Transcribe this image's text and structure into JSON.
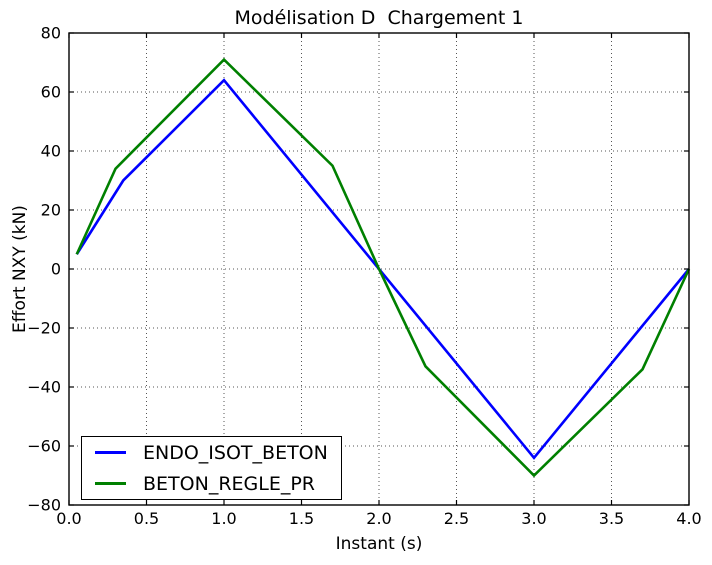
{
  "chart_data": {
    "type": "line",
    "title": "Modélisation D  Chargement 1",
    "xlabel": "Instant (s)",
    "ylabel": "Effort NXY (kN)",
    "xlim": [
      0.0,
      4.0
    ],
    "ylim": [
      -80,
      80
    ],
    "grid": true,
    "grid_style": "dotted",
    "legend_position": "lower left",
    "xticks": [
      0.0,
      0.5,
      1.0,
      1.5,
      2.0,
      2.5,
      3.0,
      3.5,
      4.0
    ],
    "xtick_labels": [
      "0.0",
      "0.5",
      "1.0",
      "1.5",
      "2.0",
      "2.5",
      "3.0",
      "3.5",
      "4.0"
    ],
    "yticks": [
      -80,
      -60,
      -40,
      -20,
      0,
      20,
      40,
      60,
      80
    ],
    "ytick_labels": [
      "−80",
      "−60",
      "−40",
      "−20",
      "0",
      "20",
      "40",
      "60",
      "80"
    ],
    "axis_color": "#000000",
    "grid_color": "#555555",
    "series": [
      {
        "name": "ENDO_ISOT_BETON",
        "color": "#0000ff",
        "x": [
          0.05,
          0.35,
          1.0,
          2.0,
          3.0,
          4.0
        ],
        "y": [
          5,
          30,
          64,
          0,
          -64,
          0
        ]
      },
      {
        "name": "BETON_REGLE_PR",
        "color": "#008000",
        "x": [
          0.05,
          0.3,
          1.0,
          1.7,
          2.0,
          2.3,
          3.0,
          3.7,
          4.0
        ],
        "y": [
          5,
          34,
          71,
          35,
          0,
          -33,
          -70,
          -34,
          0
        ]
      }
    ]
  }
}
